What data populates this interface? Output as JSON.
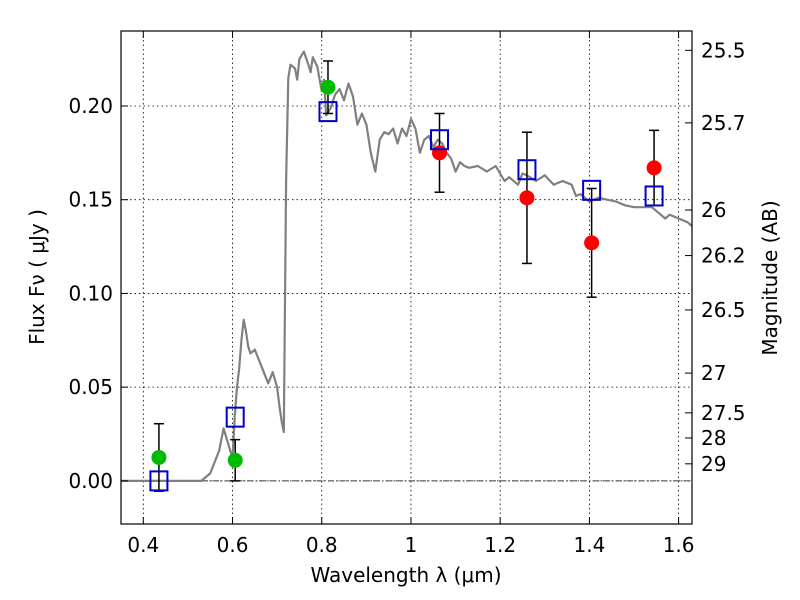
{
  "chart_data": {
    "type": "scatter",
    "xlabel": "Wavelength  λ (μm)",
    "ylabel": "Flux  Fν  ( μJy )",
    "ylabel_right": "Magnitude (AB)",
    "xlim": [
      0.35,
      1.63
    ],
    "ylim": [
      -0.023,
      0.24
    ],
    "x_ticks": [
      0.4,
      0.6,
      0.8,
      1.0,
      1.2,
      1.4,
      1.6
    ],
    "x_tick_labels": [
      "0.4",
      "0.6",
      "0.8",
      "1",
      "1.2",
      "1.4",
      "1.6"
    ],
    "y_ticks": [
      0.0,
      0.05,
      0.1,
      0.15,
      0.2
    ],
    "y_tick_labels": [
      "0.00",
      "0.05",
      "0.10",
      "0.15",
      "0.20"
    ],
    "mag_ticks": [
      {
        "value": 0.2297,
        "label": "25.5"
      },
      {
        "value": 0.191,
        "label": "25.7"
      },
      {
        "value": 0.1445,
        "label": "26"
      },
      {
        "value": 0.1202,
        "label": "26.2"
      },
      {
        "value": 0.0912,
        "label": "26.5"
      },
      {
        "value": 0.0575,
        "label": "27"
      },
      {
        "value": 0.0363,
        "label": "27.5"
      },
      {
        "value": 0.0229,
        "label": "28"
      },
      {
        "value": 0.0091,
        "label": "29"
      }
    ],
    "grid": true,
    "series": [
      {
        "name": "model_spectrum",
        "style": "line",
        "color": "#808080",
        "x": [
          0.35,
          0.4,
          0.45,
          0.5,
          0.53,
          0.55,
          0.57,
          0.58,
          0.59,
          0.6,
          0.605,
          0.61,
          0.615,
          0.62,
          0.625,
          0.63,
          0.635,
          0.64,
          0.65,
          0.66,
          0.67,
          0.68,
          0.69,
          0.7,
          0.705,
          0.71,
          0.715,
          0.72,
          0.725,
          0.73,
          0.74,
          0.745,
          0.75,
          0.76,
          0.77,
          0.775,
          0.78,
          0.79,
          0.8,
          0.805,
          0.81,
          0.82,
          0.83,
          0.84,
          0.85,
          0.86,
          0.87,
          0.88,
          0.89,
          0.9,
          0.91,
          0.92,
          0.93,
          0.94,
          0.95,
          0.96,
          0.97,
          0.98,
          0.99,
          1.0,
          1.01,
          1.02,
          1.03,
          1.04,
          1.05,
          1.06,
          1.07,
          1.08,
          1.09,
          1.1,
          1.11,
          1.12,
          1.13,
          1.15,
          1.17,
          1.19,
          1.21,
          1.22,
          1.24,
          1.25,
          1.26,
          1.28,
          1.3,
          1.32,
          1.34,
          1.36,
          1.37,
          1.38,
          1.4,
          1.42,
          1.44,
          1.46,
          1.48,
          1.5,
          1.52,
          1.54,
          1.56,
          1.57,
          1.58,
          1.6,
          1.62,
          1.63
        ],
        "y": [
          0.0,
          0.0,
          0.0,
          0.0,
          0.0,
          0.004,
          0.016,
          0.028,
          0.02,
          0.012,
          0.035,
          0.05,
          0.06,
          0.075,
          0.086,
          0.08,
          0.072,
          0.068,
          0.07,
          0.064,
          0.058,
          0.052,
          0.058,
          0.05,
          0.04,
          0.032,
          0.026,
          0.16,
          0.215,
          0.222,
          0.22,
          0.214,
          0.225,
          0.229,
          0.222,
          0.218,
          0.226,
          0.221,
          0.208,
          0.214,
          0.195,
          0.199,
          0.206,
          0.209,
          0.203,
          0.212,
          0.205,
          0.19,
          0.196,
          0.19,
          0.175,
          0.165,
          0.182,
          0.186,
          0.185,
          0.188,
          0.18,
          0.188,
          0.184,
          0.193,
          0.188,
          0.175,
          0.182,
          0.184,
          0.178,
          0.182,
          0.18,
          0.175,
          0.172,
          0.165,
          0.17,
          0.168,
          0.167,
          0.168,
          0.165,
          0.168,
          0.16,
          0.162,
          0.158,
          0.164,
          0.163,
          0.16,
          0.163,
          0.158,
          0.16,
          0.158,
          0.152,
          0.153,
          0.149,
          0.151,
          0.15,
          0.149,
          0.147,
          0.146,
          0.146,
          0.146,
          0.142,
          0.14,
          0.142,
          0.14,
          0.138,
          0.136
        ]
      },
      {
        "name": "model_photometry",
        "style": "square",
        "color": "#0000cc",
        "x": [
          0.435,
          0.606,
          0.814,
          1.064,
          1.26,
          1.405,
          1.545
        ],
        "y": [
          0.0,
          0.034,
          0.197,
          0.182,
          0.166,
          0.155,
          0.152
        ]
      },
      {
        "name": "observed_green",
        "style": "circle",
        "color": "#00bb00",
        "x": [
          0.435,
          0.606,
          0.814
        ],
        "y": [
          0.0125,
          0.011,
          0.21
        ],
        "err": [
          0.018,
          0.011,
          0.014
        ]
      },
      {
        "name": "observed_red",
        "style": "circle",
        "color": "#ff0000",
        "x": [
          1.064,
          1.26,
          1.405,
          1.545
        ],
        "y": [
          0.175,
          0.151,
          0.127,
          0.167
        ],
        "err": [
          0.021,
          0.035,
          0.029,
          0.02
        ]
      }
    ]
  }
}
